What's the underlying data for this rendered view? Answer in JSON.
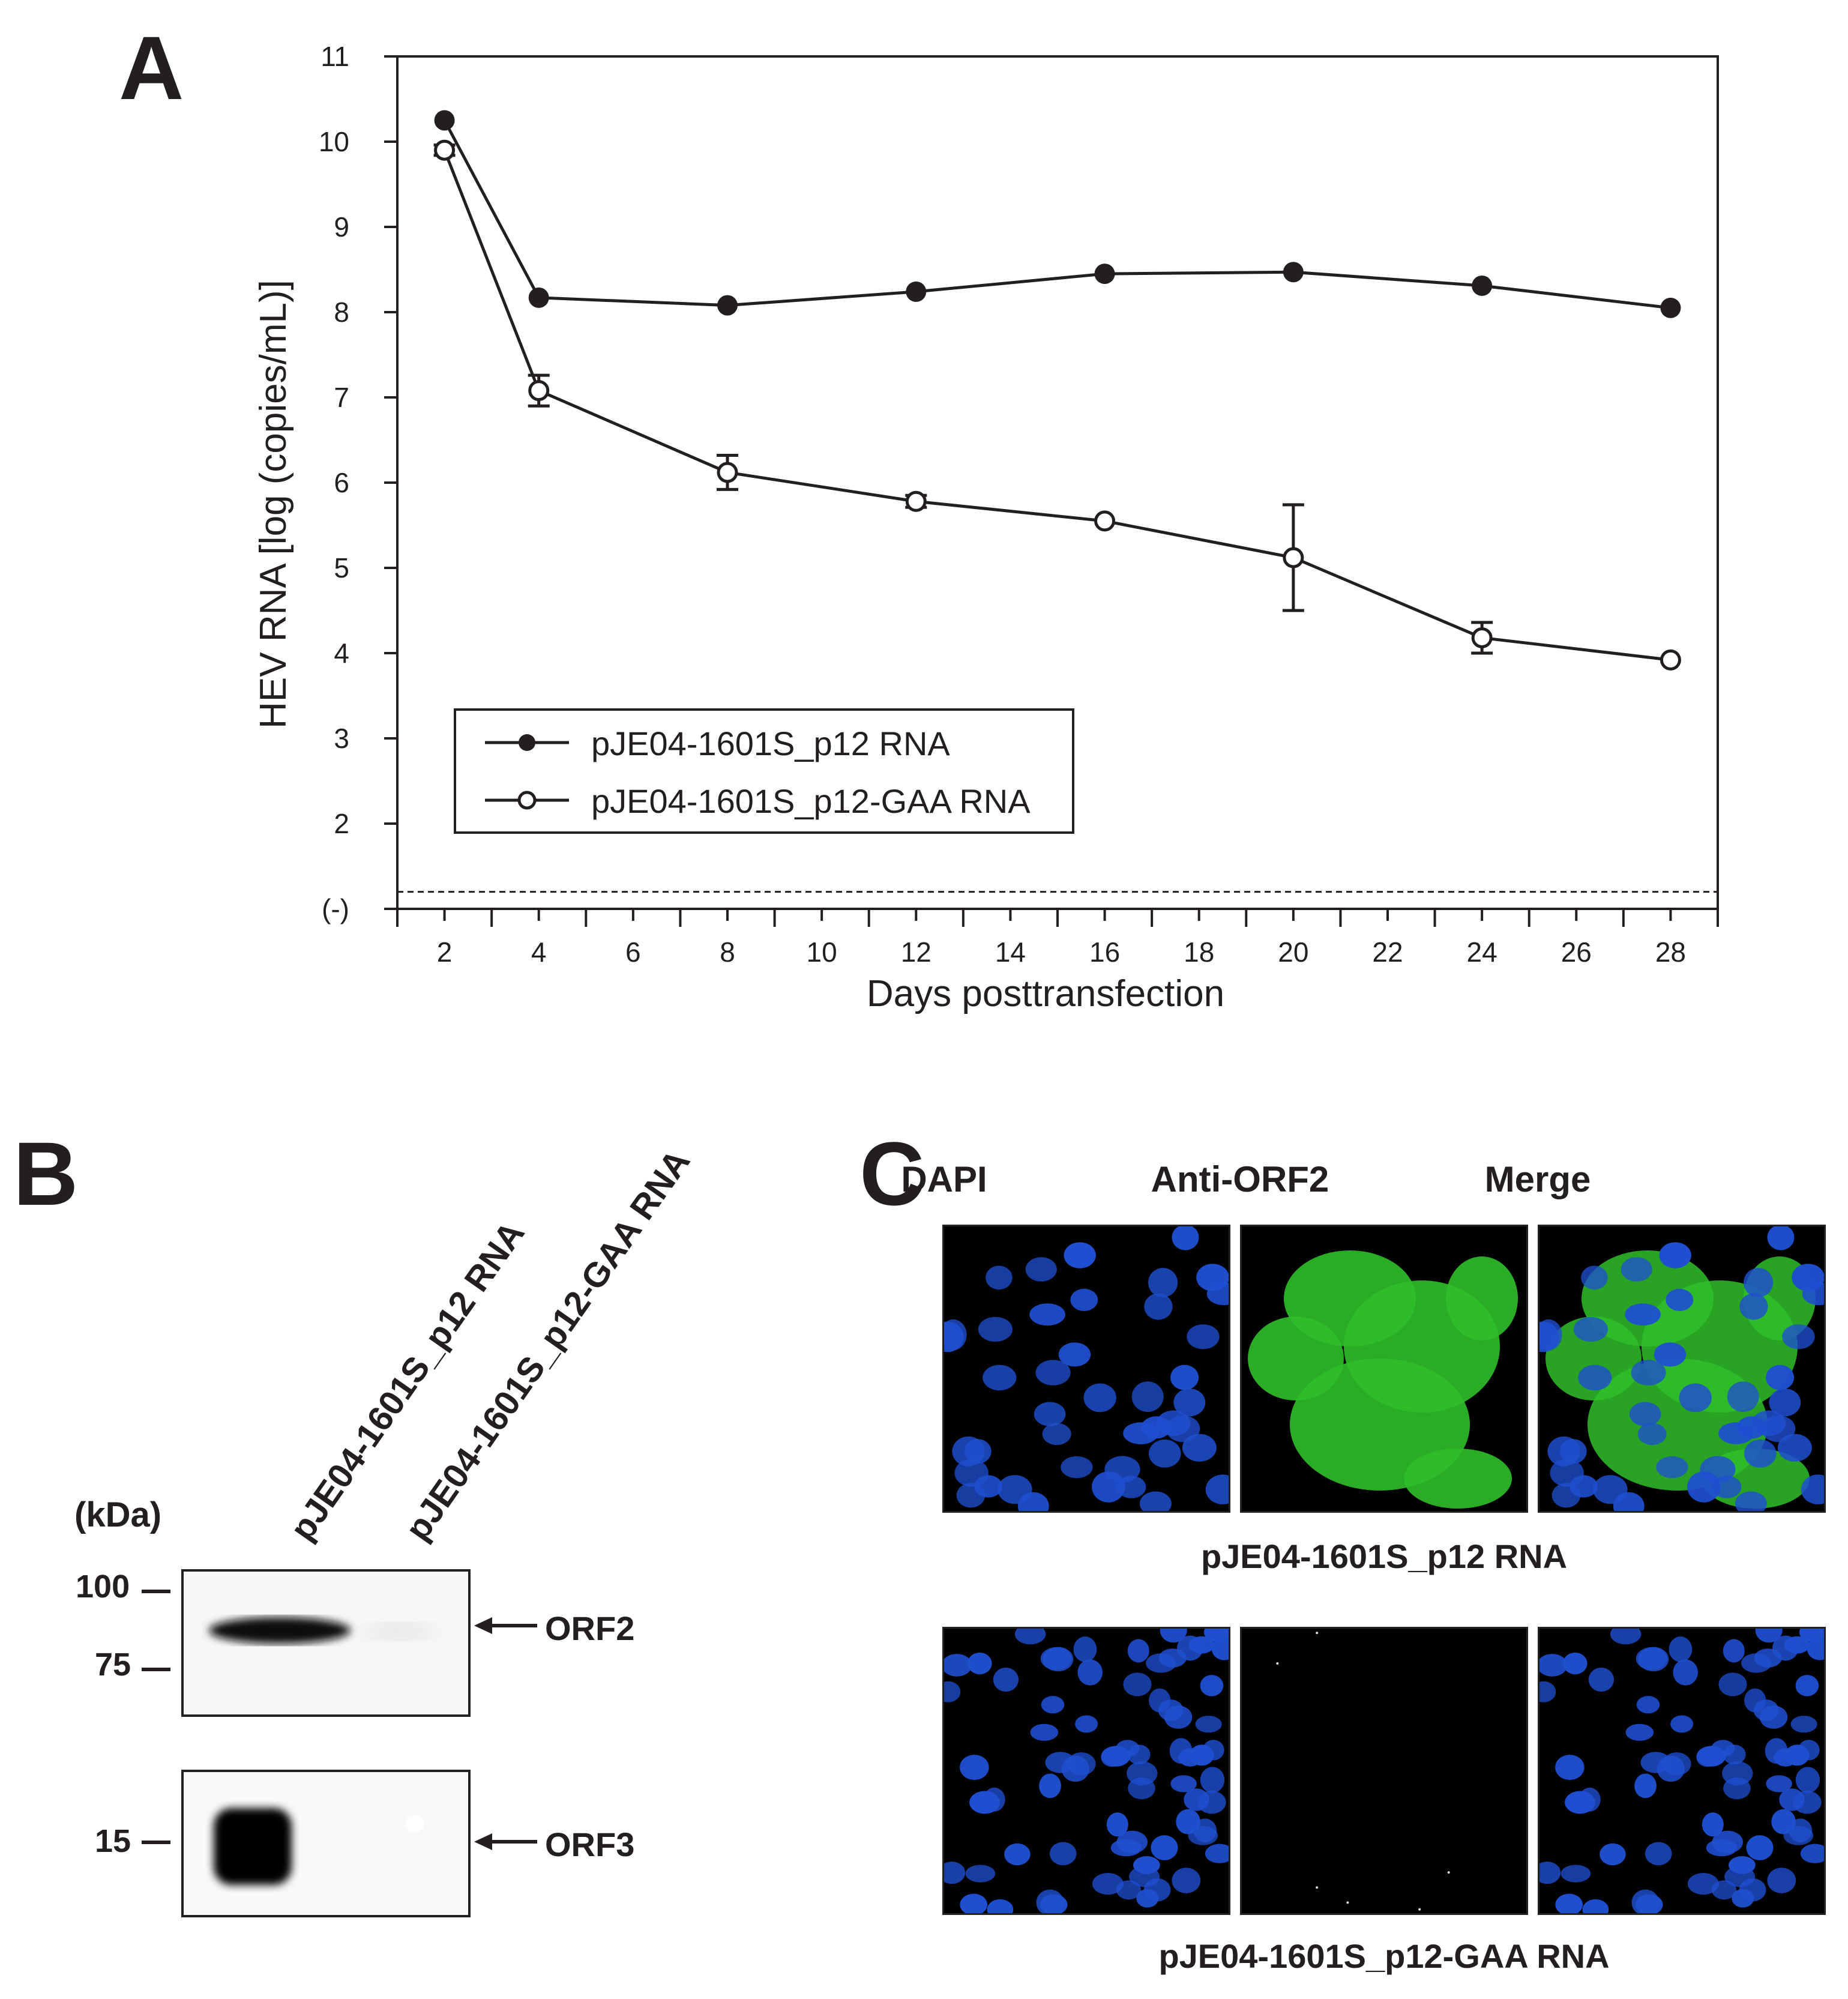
{
  "panels": {
    "a": {
      "letter": "A"
    },
    "b": {
      "letter": "B",
      "lane_labels": [
        "pJE04-1601S_p12 RNA",
        "pJE04-1601S_p12-GAA RNA"
      ],
      "kda_label": "(kDa)",
      "markers": [
        "100",
        "75",
        "15"
      ],
      "bands": [
        "ORF2",
        "ORF3"
      ]
    },
    "c": {
      "letter": "C",
      "columns": [
        "DAPI",
        "Anti-ORF2",
        "Merge"
      ],
      "rows": [
        "pJE04-1601S_p12 RNA",
        "pJE04-1601S_p12-GAA RNA"
      ]
    }
  },
  "chart_data": {
    "type": "line",
    "xlabel": "Days posttransfection",
    "ylabel": "HEV RNA [log (copies/mL)]",
    "x_ticks": [
      2,
      4,
      6,
      8,
      10,
      12,
      14,
      16,
      18,
      20,
      22,
      24,
      26,
      28
    ],
    "y_ticks": [
      "(-)",
      "2",
      "3",
      "4",
      "5",
      "6",
      "7",
      "8",
      "9",
      "10",
      "11"
    ],
    "xlim": [
      1,
      29
    ],
    "ylim": [
      1,
      11
    ],
    "detection_limit": 1.2,
    "x": [
      2,
      4,
      8,
      12,
      16,
      20,
      24,
      28
    ],
    "series": [
      {
        "name": "pJE04-1601S_p12 RNA",
        "marker": "filled-circle",
        "values": [
          10.25,
          8.17,
          8.08,
          8.24,
          8.45,
          8.47,
          8.31,
          8.05
        ],
        "errors": [
          0.02,
          0.05,
          0.03,
          0.02,
          0.03,
          0.03,
          0.04,
          0.03
        ]
      },
      {
        "name": "pJE04-1601S_p12-GAA RNA",
        "marker": "open-circle",
        "values": [
          9.9,
          7.08,
          6.12,
          5.78,
          5.55,
          5.12,
          4.18,
          3.92
        ],
        "errors": [
          0.06,
          0.18,
          0.2,
          0.07,
          0.04,
          0.62,
          0.18,
          0.04
        ]
      }
    ],
    "legend_position": "lower-left",
    "grid": false
  }
}
